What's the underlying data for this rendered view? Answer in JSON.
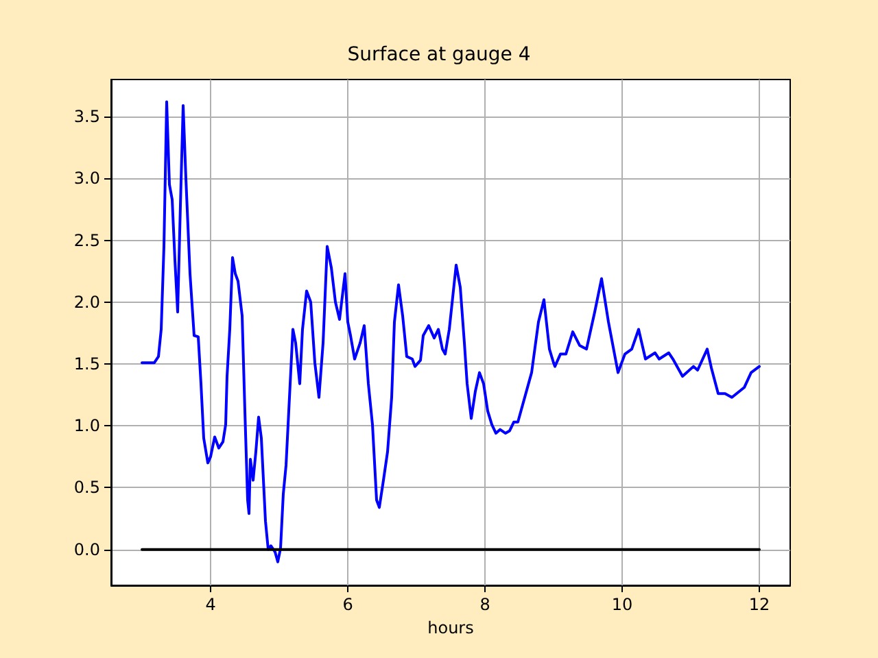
{
  "chart_data": {
    "type": "line",
    "title": "Surface at gauge 4",
    "xlabel": "hours",
    "grid": true,
    "marker": "none",
    "line_style": "solid",
    "xlim": [
      2.55,
      12.45
    ],
    "xticks": [
      4,
      6,
      8,
      10,
      12
    ],
    "ylim": [
      -0.29,
      3.8
    ],
    "yticks": [
      {
        "value": 0,
        "label": "0.0"
      },
      {
        "value": 0.5,
        "label": "0.5"
      },
      {
        "value": 1,
        "label": "1.0"
      },
      {
        "value": 1.5,
        "label": "1.5"
      },
      {
        "value": 2,
        "label": "2.0"
      },
      {
        "value": 2.5,
        "label": "2.5"
      },
      {
        "value": 3,
        "label": "3.0"
      },
      {
        "value": 3.5,
        "label": "3.5"
      }
    ],
    "series": [
      {
        "color": "#0000ff",
        "x": [
          3.0,
          3.18,
          3.24,
          3.28,
          3.32,
          3.36,
          3.4,
          3.44,
          3.48,
          3.52,
          3.56,
          3.6,
          3.64,
          3.7,
          3.76,
          3.82,
          3.86,
          3.9,
          3.96,
          4.0,
          4.06,
          4.12,
          4.18,
          4.22,
          4.24,
          4.28,
          4.32,
          4.36,
          4.4,
          4.46,
          4.5,
          4.54,
          4.56,
          4.58,
          4.62,
          4.66,
          4.7,
          4.74,
          4.8,
          4.84,
          4.88,
          4.94,
          4.98,
          5.02,
          5.06,
          5.1,
          5.16,
          5.2,
          5.24,
          5.3,
          5.34,
          5.4,
          5.46,
          5.52,
          5.58,
          5.64,
          5.7,
          5.76,
          5.82,
          5.88,
          5.96,
          6.0,
          6.04,
          6.1,
          6.18,
          6.24,
          6.3,
          6.36,
          6.42,
          6.46,
          6.52,
          6.58,
          6.64,
          6.68,
          6.74,
          6.8,
          6.86,
          6.94,
          6.98,
          7.06,
          7.1,
          7.18,
          7.26,
          7.32,
          7.38,
          7.42,
          7.48,
          7.58,
          7.64,
          7.7,
          7.74,
          7.8,
          7.86,
          7.92,
          7.98,
          8.04,
          8.1,
          8.16,
          8.22,
          8.3,
          8.36,
          8.42,
          8.48,
          8.68,
          8.78,
          8.86,
          8.94,
          9.0,
          9.02,
          9.1,
          9.18,
          9.28,
          9.38,
          9.48,
          9.6,
          9.7,
          9.8,
          9.94,
          10.04,
          10.14,
          10.24,
          10.34,
          10.48,
          10.54,
          10.68,
          10.74,
          10.88,
          11.04,
          11.1,
          11.24,
          11.3,
          11.4,
          11.5,
          11.6,
          11.78,
          11.88,
          12.0
        ],
        "values": [
          1.51,
          1.51,
          1.56,
          1.78,
          2.45,
          3.62,
          2.95,
          2.83,
          2.34,
          1.92,
          2.78,
          3.59,
          3.0,
          2.23,
          1.73,
          1.72,
          1.34,
          0.9,
          0.7,
          0.75,
          0.91,
          0.82,
          0.87,
          1.01,
          1.4,
          1.78,
          2.36,
          2.23,
          2.17,
          1.89,
          1.12,
          0.4,
          0.29,
          0.73,
          0.56,
          0.79,
          1.07,
          0.9,
          0.23,
          0.0,
          0.03,
          -0.02,
          -0.1,
          0.01,
          0.45,
          0.68,
          1.34,
          1.78,
          1.67,
          1.34,
          1.78,
          2.09,
          2.0,
          1.51,
          1.23,
          1.67,
          2.45,
          2.28,
          2.0,
          1.86,
          2.23,
          1.84,
          1.73,
          1.54,
          1.67,
          1.81,
          1.34,
          1.01,
          0.4,
          0.34,
          0.56,
          0.79,
          1.23,
          1.84,
          2.14,
          1.89,
          1.56,
          1.54,
          1.48,
          1.53,
          1.73,
          1.81,
          1.71,
          1.78,
          1.62,
          1.58,
          1.78,
          2.3,
          2.12,
          1.67,
          1.34,
          1.06,
          1.28,
          1.43,
          1.34,
          1.12,
          1.01,
          0.94,
          0.97,
          0.94,
          0.96,
          1.03,
          1.03,
          1.43,
          1.84,
          2.02,
          1.62,
          1.51,
          1.48,
          1.58,
          1.58,
          1.76,
          1.65,
          1.62,
          1.92,
          2.19,
          1.84,
          1.43,
          1.58,
          1.62,
          1.78,
          1.54,
          1.59,
          1.54,
          1.59,
          1.54,
          1.4,
          1.48,
          1.45,
          1.62,
          1.47,
          1.26,
          1.26,
          1.23,
          1.31,
          1.43,
          1.48
        ]
      },
      {
        "color": "#000000",
        "x": [
          3,
          12
        ],
        "values": [
          0,
          0
        ]
      }
    ]
  }
}
